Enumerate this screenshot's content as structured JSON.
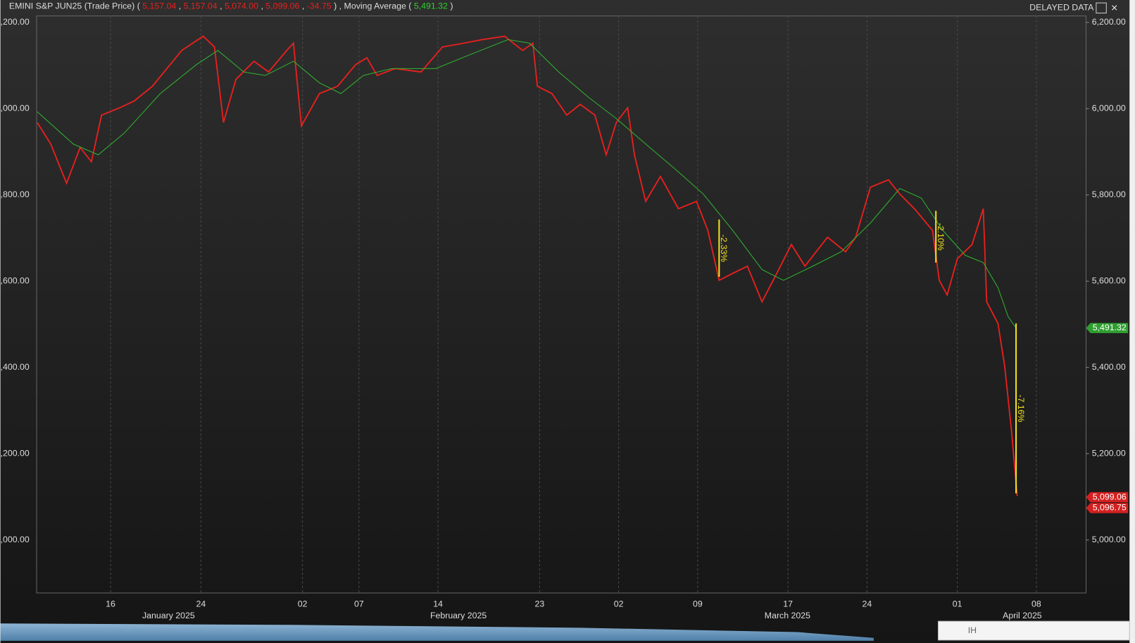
{
  "chart_data": {
    "type": "line",
    "header_values": [
      "5,157.04",
      "5,157.04",
      "5,074.00",
      "5,099.06",
      "-34.75"
    ],
    "ma_value": "5,491.32",
    "status": "DELAYED DATA",
    "toolbar": [
      "IH"
    ],
    "series": [
      {
        "name": "EMINI S&P JUN25 (Trade Price)",
        "color": "#e8201e",
        "x": [
          9.5,
          10.7,
          12.1,
          13.3,
          14.3,
          15.2,
          16.8,
          18.1,
          19.7,
          22.3,
          24.2,
          25.2,
          26.0,
          27.1,
          28.7,
          30.0,
          31.6,
          32.2,
          32.9,
          34.5,
          36.1,
          37.7,
          38.7,
          39.6,
          41.2,
          43.5,
          45.4,
          47.3,
          48.9,
          50.9,
          52.5,
          53.4,
          53.8,
          55.1,
          56.4,
          57.6,
          58.9,
          59.9,
          60.8,
          61.8,
          62.4,
          63.4,
          64.7,
          66.3,
          67.9,
          68.9,
          69.9,
          71.1,
          72.4,
          73.7,
          75.0,
          76.3,
          77.5,
          79.5,
          81.1,
          82.0,
          83.3,
          84.9,
          85.9,
          87.2,
          88.8,
          89.4,
          90.1,
          91.0,
          92.3,
          93.3,
          93.6,
          94.6,
          95.2,
          95.8,
          96.3
        ],
        "values": [
          5968,
          5918,
          5827,
          5910,
          5877,
          5985,
          6002,
          6018,
          6052,
          6135,
          6168,
          6143,
          5968,
          6068,
          6110,
          6085,
          6135,
          6152,
          5960,
          6035,
          6052,
          6102,
          6118,
          6077,
          6093,
          6085,
          6143,
          6152,
          6160,
          6168,
          6135,
          6152,
          6052,
          6035,
          5985,
          6010,
          5985,
          5893,
          5968,
          6002,
          5893,
          5785,
          5843,
          5768,
          5785,
          5718,
          5602,
          5618,
          5635,
          5552,
          5618,
          5685,
          5635,
          5702,
          5668,
          5702,
          5818,
          5835,
          5802,
          5768,
          5718,
          5602,
          5568,
          5652,
          5685,
          5768,
          5552,
          5502,
          5402,
          5252,
          5102
        ]
      },
      {
        "name": "Moving Average",
        "color": "#2fb52f",
        "x": [
          9.5,
          12.7,
          14.9,
          17.2,
          20.4,
          23.6,
          25.5,
          27.8,
          29.7,
          32.2,
          34.5,
          36.4,
          38.4,
          40.9,
          44.8,
          48.0,
          51.2,
          53.1,
          55.7,
          58.3,
          60.8,
          63.4,
          66.0,
          68.5,
          71.1,
          73.7,
          75.6,
          78.2,
          80.7,
          83.3,
          85.9,
          87.8,
          89.7,
          91.7,
          93.3,
          94.6,
          95.5,
          96.2
        ],
        "values": [
          5993,
          5918,
          5893,
          5943,
          6035,
          6102,
          6135,
          6085,
          6077,
          6110,
          6060,
          6035,
          6077,
          6093,
          6093,
          6127,
          6160,
          6152,
          6085,
          6027,
          5977,
          5918,
          5860,
          5802,
          5718,
          5627,
          5602,
          5635,
          5668,
          5735,
          5815,
          5793,
          5718,
          5660,
          5643,
          5585,
          5518,
          5491.32
        ]
      }
    ],
    "annotations": [
      {
        "label": "-2.33%",
        "x": 69.9,
        "from": 5743,
        "to": 5610
      },
      {
        "label": "-2.10%",
        "x": 89.1,
        "from": 5763,
        "to": 5643
      },
      {
        "label": "-7.16%",
        "x": 96.2,
        "from": 5502,
        "to": 5108
      }
    ],
    "price_labels": [
      {
        "value": 5491.32,
        "label": "5,491.32",
        "color": "#2f9e2f"
      },
      {
        "value": 5099.06,
        "label": "5,099.06",
        "color": "#d42020"
      },
      {
        "value": 5096.75,
        "label": "5,096.75",
        "color": "#d42020"
      }
    ],
    "xlim": [
      9.45,
      102.4
    ],
    "xticks": [
      {
        "value": 16,
        "label": "16"
      },
      {
        "value": 24,
        "label": "24"
      },
      {
        "value": 33,
        "label": "02"
      },
      {
        "value": 38,
        "label": "07"
      },
      {
        "value": 45,
        "label": "14"
      },
      {
        "value": 54,
        "label": "23"
      },
      {
        "value": 61,
        "label": "02"
      },
      {
        "value": 68,
        "label": "09"
      },
      {
        "value": 76,
        "label": "17"
      },
      {
        "value": 83,
        "label": "24"
      },
      {
        "value": 91,
        "label": "01"
      },
      {
        "value": 98,
        "label": "08"
      }
    ],
    "month_labels": [
      "January 2025",
      "February 2025",
      "March 2025",
      "April 2025"
    ],
    "ylim": [
      4877,
      6215
    ],
    "yticks": [
      {
        "value": 5000,
        "label": "5,000.00"
      },
      {
        "value": 5200,
        "label": "5,200.00"
      },
      {
        "value": 5400,
        "label": "5,400.00"
      },
      {
        "value": 5600,
        "label": "5,600.00"
      },
      {
        "value": 5800,
        "label": "5,800.00"
      },
      {
        "value": 6000,
        "label": "6,000.00"
      },
      {
        "value": 6200,
        "label": "6,200.00"
      }
    ],
    "grid": true
  }
}
